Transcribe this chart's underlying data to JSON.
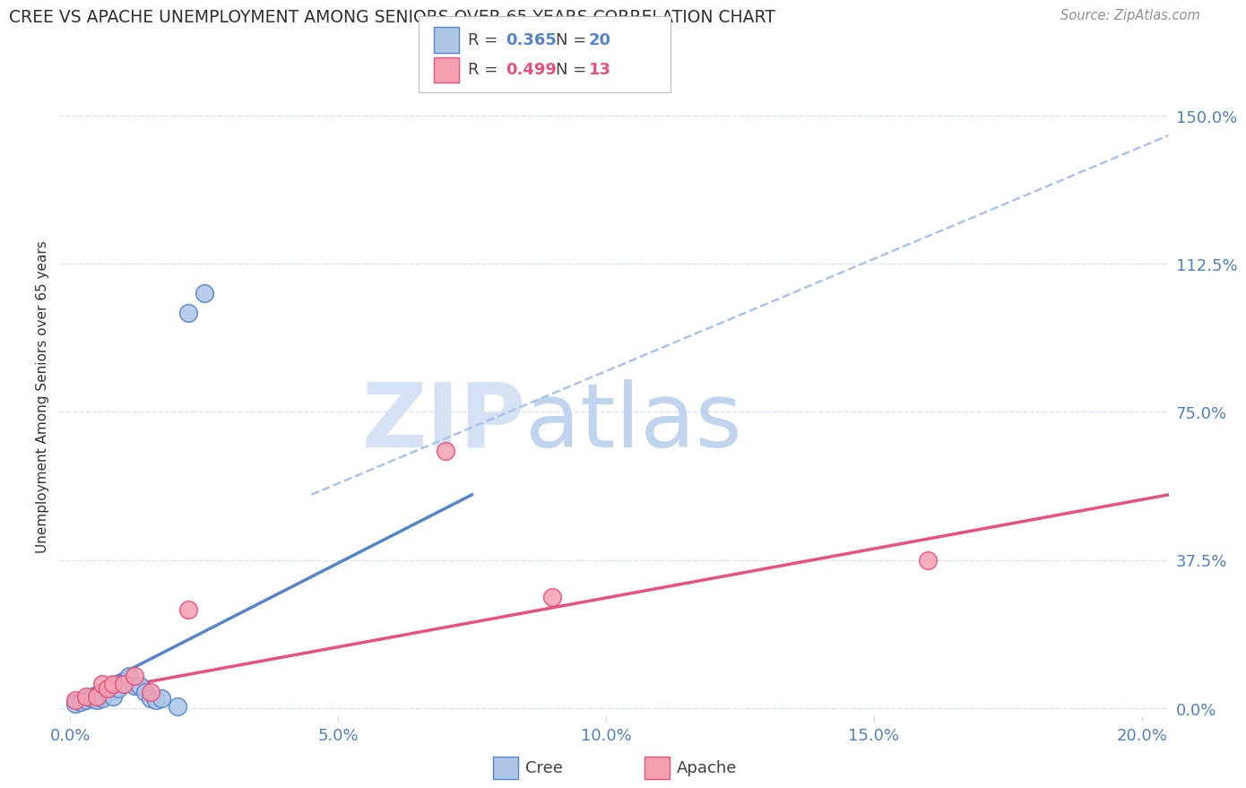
{
  "title": "CREE VS APACHE UNEMPLOYMENT AMONG SENIORS OVER 65 YEARS CORRELATION CHART",
  "source": "Source: ZipAtlas.com",
  "ylabel": "Unemployment Among Seniors over 65 years",
  "xlabel_ticks": [
    "0.0%",
    "5.0%",
    "10.0%",
    "15.0%",
    "20.0%"
  ],
  "xlabel_vals": [
    0.0,
    0.05,
    0.1,
    0.15,
    0.2
  ],
  "ylabel_ticks": [
    "0.0%",
    "37.5%",
    "75.0%",
    "112.5%",
    "150.0%"
  ],
  "ylabel_vals": [
    0.0,
    0.375,
    0.75,
    1.125,
    1.5
  ],
  "xlim": [
    -0.002,
    0.205
  ],
  "ylim": [
    -0.02,
    1.6
  ],
  "cree_R": "0.365",
  "cree_N": "20",
  "apache_R": "0.499",
  "apache_N": "13",
  "cree_color": "#adc6e8",
  "apache_color": "#f4a0b0",
  "cree_line_color": "#5585c8",
  "apache_line_color": "#e85080",
  "dashed_line_color": "#aac4e8",
  "watermark_zip_color": "#d4e2f4",
  "watermark_atlas_color": "#c0d4ee",
  "background_color": "#ffffff",
  "grid_color": "#d8e4f0",
  "title_color": "#303030",
  "source_color": "#909090",
  "axis_label_color": "#5080c0",
  "tick_label_color": "#5080c0",
  "cree_points_x": [
    0.001,
    0.002,
    0.003,
    0.004,
    0.005,
    0.006,
    0.007,
    0.008,
    0.009,
    0.01,
    0.011,
    0.012,
    0.013,
    0.014,
    0.015,
    0.016,
    0.017,
    0.02,
    0.022,
    0.025
  ],
  "cree_points_y": [
    0.01,
    0.015,
    0.02,
    0.025,
    0.02,
    0.025,
    0.04,
    0.03,
    0.05,
    0.06,
    0.08,
    0.055,
    0.055,
    0.04,
    0.025,
    0.02,
    0.025,
    0.005,
    1.0,
    1.05
  ],
  "apache_points_x": [
    0.001,
    0.003,
    0.005,
    0.006,
    0.007,
    0.008,
    0.01,
    0.012,
    0.015,
    0.022,
    0.07,
    0.09,
    0.16
  ],
  "apache_points_y": [
    0.02,
    0.03,
    0.03,
    0.06,
    0.05,
    0.06,
    0.06,
    0.08,
    0.04,
    0.25,
    0.65,
    0.28,
    0.375
  ],
  "cree_trendline_x": [
    0.0,
    0.075
  ],
  "cree_trendline_y": [
    0.02,
    0.54
  ],
  "apache_trendline_x": [
    0.0,
    0.205
  ],
  "apache_trendline_y": [
    0.03,
    0.54
  ],
  "dashed_trendline_x": [
    0.045,
    0.205
  ],
  "dashed_trendline_y": [
    0.54,
    1.45
  ]
}
